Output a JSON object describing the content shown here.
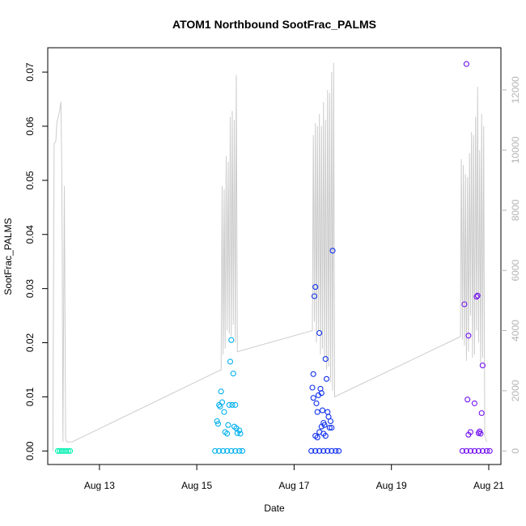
{
  "chart_data": {
    "type": "scatter",
    "title": "ATOM1 Northbound SootFrac_PALMS",
    "xlabel": "Date",
    "ylabel": "SootFrac_PALMS",
    "xlim": [
      "2016-08-11T22:30",
      "2016-08-21T06:00"
    ],
    "ylim": [
      -0.0025,
      0.0745
    ],
    "y_ticks": [
      0.0,
      0.01,
      0.02,
      0.03,
      0.04,
      0.05,
      0.06,
      0.07
    ],
    "y_tick_labels": [
      "0.00",
      "0.01",
      "0.02",
      "0.03",
      "0.04",
      "0.05",
      "0.06",
      "0.07"
    ],
    "x_ticks": [
      "2016-08-13",
      "2016-08-15",
      "2016-08-17",
      "2016-08-19",
      "2016-08-21"
    ],
    "x_tick_labels": [
      "Aug 13",
      "Aug 15",
      "Aug 17",
      "Aug 19",
      "Aug 21"
    ],
    "y2_ticks": [
      0,
      2000,
      4000,
      6000,
      8000,
      10000,
      12000
    ],
    "y2_tick_labels": [
      "0",
      "2000",
      "4000",
      "6000",
      "8000",
      "10000",
      "12000"
    ],
    "y2lim": [
      -450,
      13400
    ],
    "grid": false,
    "legend": "none",
    "colors": {
      "altitude_line": "#cccccc",
      "axis": "#000000",
      "right_axis": "#b5b5b5"
    },
    "series": [
      {
        "color": "#00f0b0",
        "points": [
          [
            "2016-08-12T03:30",
            0
          ],
          [
            "2016-08-12T04:30",
            0
          ],
          [
            "2016-08-12T05:30",
            0
          ],
          [
            "2016-08-12T06:30",
            0
          ],
          [
            "2016-08-12T07:30",
            0
          ],
          [
            "2016-08-12T08:30",
            0
          ],
          [
            "2016-08-12T09:30",
            0
          ]
        ]
      },
      {
        "color": "#00b0ee",
        "points": [
          [
            "2016-08-15T09:00",
            0
          ],
          [
            "2016-08-15T11:00",
            0
          ],
          [
            "2016-08-15T13:00",
            0
          ],
          [
            "2016-08-15T15:00",
            0
          ],
          [
            "2016-08-15T17:00",
            0
          ],
          [
            "2016-08-15T19:00",
            0
          ],
          [
            "2016-08-15T21:00",
            0
          ],
          [
            "2016-08-15T22:30",
            0
          ],
          [
            "2016-08-15T10:00",
            0.0055
          ],
          [
            "2016-08-15T10:30",
            0.005
          ],
          [
            "2016-08-15T11:00",
            0.0085
          ],
          [
            "2016-08-15T11:30",
            0.0082
          ],
          [
            "2016-08-15T12:00",
            0.011
          ],
          [
            "2016-08-15T12:30",
            0.009
          ],
          [
            "2016-08-15T13:30",
            0.0072
          ],
          [
            "2016-08-15T14:00",
            0.0035
          ],
          [
            "2016-08-15T15:00",
            0.0032
          ],
          [
            "2016-08-15T15:30",
            0.0048
          ],
          [
            "2016-08-15T16:00",
            0.0085
          ],
          [
            "2016-08-15T16:30",
            0.0165
          ],
          [
            "2016-08-15T17:00",
            0.0205
          ],
          [
            "2016-08-15T17:30",
            0.0085
          ],
          [
            "2016-08-15T18:00",
            0.0143
          ],
          [
            "2016-08-15T18:30",
            0.0045
          ],
          [
            "2016-08-15T19:00",
            0.0085
          ],
          [
            "2016-08-15T19:30",
            0.0042
          ],
          [
            "2016-08-15T20:00",
            0.0033
          ],
          [
            "2016-08-15T21:00",
            0.0038
          ],
          [
            "2016-08-15T21:30",
            0.0032
          ]
        ]
      },
      {
        "color": "#1030ee",
        "points": [
          [
            "2016-08-17T08:30",
            0
          ],
          [
            "2016-08-17T10:30",
            0
          ],
          [
            "2016-08-17T12:30",
            0
          ],
          [
            "2016-08-17T14:30",
            0
          ],
          [
            "2016-08-17T16:30",
            0
          ],
          [
            "2016-08-17T18:30",
            0
          ],
          [
            "2016-08-17T20:30",
            0
          ],
          [
            "2016-08-17T22:00",
            0
          ],
          [
            "2016-08-17T09:00",
            0.0117
          ],
          [
            "2016-08-17T09:30",
            0.0098
          ],
          [
            "2016-08-17T10:00",
            0.0286
          ],
          [
            "2016-08-17T10:30",
            0.0303
          ],
          [
            "2016-08-17T11:00",
            0.0088
          ],
          [
            "2016-08-17T11:30",
            0.0072
          ],
          [
            "2016-08-17T12:00",
            0.0103
          ],
          [
            "2016-08-17T12:30",
            0.0218
          ],
          [
            "2016-08-17T13:00",
            0.0115
          ],
          [
            "2016-08-17T13:30",
            0.0107
          ],
          [
            "2016-08-17T14:00",
            0.0075
          ],
          [
            "2016-08-17T14:30",
            0.0052
          ],
          [
            "2016-08-17T15:00",
            0.0048
          ],
          [
            "2016-08-17T15:30",
            0.017
          ],
          [
            "2016-08-17T16:00",
            0.0133
          ],
          [
            "2016-08-17T16:30",
            0.0072
          ],
          [
            "2016-08-17T17:00",
            0.0063
          ],
          [
            "2016-08-17T17:30",
            0.0043
          ],
          [
            "2016-08-17T18:00",
            0.0055
          ],
          [
            "2016-08-17T18:30",
            0.0043
          ],
          [
            "2016-08-17T19:00",
            0.037
          ],
          [
            "2016-08-17T09:30",
            0.0142
          ],
          [
            "2016-08-17T10:30",
            0.0028
          ],
          [
            "2016-08-17T11:30",
            0.0025
          ],
          [
            "2016-08-17T12:30",
            0.0035
          ],
          [
            "2016-08-17T13:30",
            0.0045
          ],
          [
            "2016-08-17T14:30",
            0.0032
          ],
          [
            "2016-08-17T15:30",
            0.0028
          ]
        ]
      },
      {
        "color": "#7010ee",
        "points": [
          [
            "2016-08-20T11:00",
            0
          ],
          [
            "2016-08-20T13:00",
            0
          ],
          [
            "2016-08-20T15:00",
            0
          ],
          [
            "2016-08-20T17:00",
            0
          ],
          [
            "2016-08-20T19:00",
            0
          ],
          [
            "2016-08-20T21:00",
            0
          ],
          [
            "2016-08-20T23:00",
            0
          ],
          [
            "2016-08-21T00:30",
            0
          ],
          [
            "2016-08-20T12:00",
            0.0271
          ],
          [
            "2016-08-20T13:00",
            0.0715
          ],
          [
            "2016-08-20T14:00",
            0.0213
          ],
          [
            "2016-08-20T13:30",
            0.0095
          ],
          [
            "2016-08-20T15:00",
            0.0035
          ],
          [
            "2016-08-20T14:00",
            0.003
          ],
          [
            "2016-08-20T17:00",
            0.0088
          ],
          [
            "2016-08-20T18:00",
            0.0285
          ],
          [
            "2016-08-20T18:30",
            0.0287
          ],
          [
            "2016-08-20T19:00",
            0.0033
          ],
          [
            "2016-08-20T19:30",
            0.0036
          ],
          [
            "2016-08-20T20:30",
            0.007
          ],
          [
            "2016-08-20T21:00",
            0.0158
          ],
          [
            "2016-08-20T20:00",
            0.0032
          ]
        ]
      }
    ],
    "altitude": {
      "axis": "right",
      "color": "#cccccc",
      "points": [
        [
          "2016-08-12T01:00",
          0
        ],
        [
          "2016-08-12T01:40",
          10200
        ],
        [
          "2016-08-12T02:30",
          10300
        ],
        [
          "2016-08-12T03:00",
          10900
        ],
        [
          "2016-08-12T03:40",
          11100
        ],
        [
          "2016-08-12T04:20",
          11300
        ],
        [
          "2016-08-12T05:00",
          11600
        ],
        [
          "2016-08-12T05:30",
          8900
        ],
        [
          "2016-08-12T06:00",
          300
        ],
        [
          "2016-08-12T06:40",
          8800
        ],
        [
          "2016-08-12T07:20",
          400
        ],
        [
          "2016-08-12T08:00",
          300
        ],
        [
          "2016-08-12T09:30",
          300
        ],
        [
          "2016-08-12T10:30",
          300
        ],
        [
          "2016-08-15T12:00",
          2700
        ],
        [
          "2016-08-15T12:30",
          8800
        ],
        [
          "2016-08-15T13:00",
          3200
        ],
        [
          "2016-08-15T13:30",
          8700
        ],
        [
          "2016-08-15T14:00",
          3400
        ],
        [
          "2016-08-15T14:30",
          9800
        ],
        [
          "2016-08-15T15:00",
          4000
        ],
        [
          "2016-08-15T15:30",
          9600
        ],
        [
          "2016-08-15T16:00",
          3900
        ],
        [
          "2016-08-15T16:30",
          11100
        ],
        [
          "2016-08-15T17:00",
          3800
        ],
        [
          "2016-08-15T17:30",
          11300
        ],
        [
          "2016-08-15T18:00",
          4200
        ],
        [
          "2016-08-15T18:30",
          11000
        ],
        [
          "2016-08-15T19:00",
          3600
        ],
        [
          "2016-08-15T19:30",
          12500
        ],
        [
          "2016-08-15T20:00",
          3300
        ],
        [
          "2016-08-17T09:00",
          4000
        ],
        [
          "2016-08-17T09:30",
          10500
        ],
        [
          "2016-08-17T10:00",
          4300
        ],
        [
          "2016-08-17T10:30",
          10900
        ],
        [
          "2016-08-17T11:00",
          3600
        ],
        [
          "2016-08-17T11:30",
          10800
        ],
        [
          "2016-08-17T12:00",
          4000
        ],
        [
          "2016-08-17T12:30",
          11200
        ],
        [
          "2016-08-17T13:00",
          3200
        ],
        [
          "2016-08-17T13:30",
          10800
        ],
        [
          "2016-08-17T14:00",
          3400
        ],
        [
          "2016-08-17T14:30",
          11600
        ],
        [
          "2016-08-17T15:00",
          3100
        ],
        [
          "2016-08-17T15:30",
          11000
        ],
        [
          "2016-08-17T16:00",
          2700
        ],
        [
          "2016-08-17T16:30",
          12000
        ],
        [
          "2016-08-17T17:00",
          2800
        ],
        [
          "2016-08-17T17:30",
          11900
        ],
        [
          "2016-08-17T18:00",
          2300
        ],
        [
          "2016-08-17T18:30",
          12600
        ],
        [
          "2016-08-17T19:00",
          2000
        ],
        [
          "2016-08-17T19:30",
          12900
        ],
        [
          "2016-08-17T20:00",
          1800
        ],
        [
          "2016-08-20T10:00",
          3800
        ],
        [
          "2016-08-20T10:30",
          9700
        ],
        [
          "2016-08-20T11:00",
          3700
        ],
        [
          "2016-08-20T11:30",
          9500
        ],
        [
          "2016-08-20T12:00",
          3500
        ],
        [
          "2016-08-20T12:30",
          9200
        ],
        [
          "2016-08-20T13:00",
          3000
        ],
        [
          "2016-08-20T13:30",
          9100
        ],
        [
          "2016-08-20T14:00",
          3300
        ],
        [
          "2016-08-20T14:30",
          9900
        ],
        [
          "2016-08-20T15:00",
          4500
        ],
        [
          "2016-08-20T15:30",
          10600
        ],
        [
          "2016-08-20T16:00",
          3100
        ],
        [
          "2016-08-20T16:30",
          10500
        ],
        [
          "2016-08-20T17:00",
          3200
        ],
        [
          "2016-08-20T17:30",
          11100
        ],
        [
          "2016-08-20T18:00",
          4000
        ],
        [
          "2016-08-20T18:30",
          12100
        ],
        [
          "2016-08-20T19:00",
          3600
        ],
        [
          "2016-08-20T19:30",
          10000
        ],
        [
          "2016-08-20T20:00",
          2900
        ],
        [
          "2016-08-20T20:30",
          11200
        ],
        [
          "2016-08-20T21:00",
          3100
        ],
        [
          "2016-08-20T21:30",
          10800
        ],
        [
          "2016-08-20T22:00",
          500
        ],
        [
          "2016-08-20T23:00",
          300
        ]
      ]
    }
  }
}
